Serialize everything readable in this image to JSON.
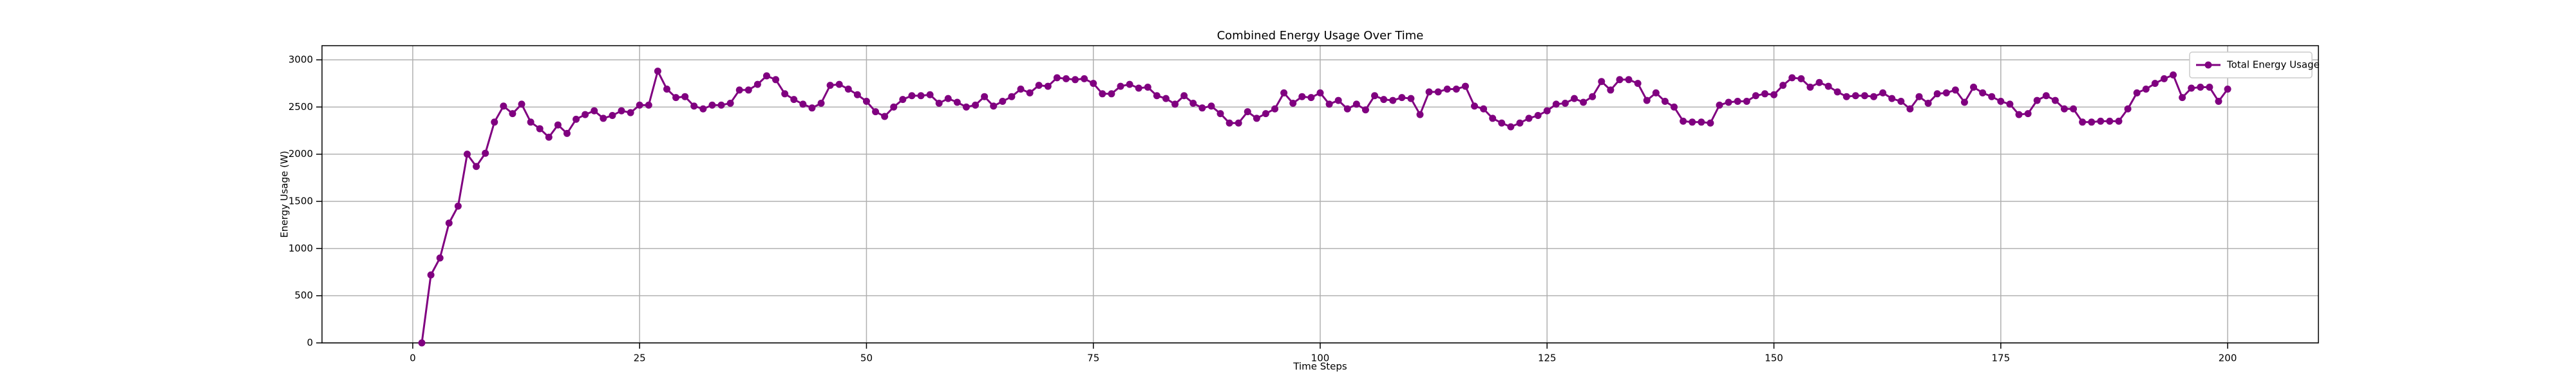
{
  "chart_data": {
    "type": "line",
    "title": "Combined Energy Usage Over Time",
    "x_label": "Time Steps",
    "y_label": "Energy Usage (W)",
    "x": [
      1,
      2,
      3,
      4,
      5,
      6,
      7,
      8,
      9,
      10,
      11,
      12,
      13,
      14,
      15,
      16,
      17,
      18,
      19,
      20,
      21,
      22,
      23,
      24,
      25,
      26,
      27,
      28,
      29,
      30,
      31,
      32,
      33,
      34,
      35,
      36,
      37,
      38,
      39,
      40,
      41,
      42,
      43,
      44,
      45,
      46,
      47,
      48,
      49,
      50,
      51,
      52,
      53,
      54,
      55,
      56,
      57,
      58,
      59,
      60,
      61,
      62,
      63,
      64,
      65,
      66,
      67,
      68,
      69,
      70,
      71,
      72,
      73,
      74,
      75,
      76,
      77,
      78,
      79,
      80,
      81,
      82,
      83,
      84,
      85,
      86,
      87,
      88,
      89,
      90,
      91,
      92,
      93,
      94,
      95,
      96,
      97,
      98,
      99,
      100,
      101,
      102,
      103,
      104,
      105,
      106,
      107,
      108,
      109,
      110,
      111,
      112,
      113,
      114,
      115,
      116,
      117,
      118,
      119,
      120,
      121,
      122,
      123,
      124,
      125,
      126,
      127,
      128,
      129,
      130,
      131,
      132,
      133,
      134,
      135,
      136,
      137,
      138,
      139,
      140,
      141,
      142,
      143,
      144,
      145,
      146,
      147,
      148,
      149,
      150,
      151,
      152,
      153,
      154,
      155,
      156,
      157,
      158,
      159,
      160,
      161,
      162,
      163,
      164,
      165,
      166,
      167,
      168,
      169,
      170,
      171,
      172,
      173,
      174,
      175,
      176,
      177,
      178,
      179,
      180,
      181,
      182,
      183,
      184,
      185,
      186,
      187,
      188,
      189,
      190,
      191,
      192,
      193,
      194,
      195,
      196,
      197,
      198,
      199,
      200
    ],
    "series": [
      {
        "name": "Total Energy Usage",
        "color": "#800080",
        "values": [
          0,
          720,
          900,
          1270,
          1450,
          2000,
          1870,
          2010,
          2340,
          2510,
          2430,
          2530,
          2340,
          2270,
          2180,
          2310,
          2220,
          2370,
          2420,
          2460,
          2380,
          2410,
          2460,
          2440,
          2520,
          2520,
          2880,
          2690,
          2600,
          2610,
          2510,
          2480,
          2520,
          2520,
          2540,
          2680,
          2680,
          2740,
          2830,
          2790,
          2640,
          2580,
          2530,
          2490,
          2540,
          2730,
          2740,
          2690,
          2630,
          2560,
          2450,
          2400,
          2500,
          2580,
          2620,
          2620,
          2630,
          2540,
          2590,
          2550,
          2500,
          2520,
          2610,
          2510,
          2560,
          2610,
          2690,
          2650,
          2730,
          2720,
          2810,
          2800,
          2790,
          2800,
          2750,
          2640,
          2640,
          2720,
          2740,
          2700,
          2710,
          2620,
          2590,
          2530,
          2620,
          2540,
          2490,
          2510,
          2430,
          2330,
          2330,
          2450,
          2380,
          2430,
          2480,
          2650,
          2540,
          2610,
          2600,
          2650,
          2530,
          2570,
          2480,
          2530,
          2470,
          2620,
          2580,
          2570,
          2600,
          2590,
          2420,
          2660,
          2660,
          2690,
          2690,
          2720,
          2510,
          2480,
          2380,
          2330,
          2290,
          2330,
          2380,
          2410,
          2460,
          2530,
          2540,
          2590,
          2550,
          2610,
          2770,
          2680,
          2790,
          2790,
          2750,
          2570,
          2650,
          2560,
          2500,
          2350,
          2340,
          2340,
          2330,
          2520,
          2550,
          2560,
          2560,
          2620,
          2640,
          2630,
          2730,
          2810,
          2800,
          2710,
          2760,
          2720,
          2660,
          2610,
          2620,
          2620,
          2610,
          2650,
          2590,
          2560,
          2480,
          2610,
          2540,
          2640,
          2650,
          2680,
          2550,
          2710,
          2650,
          2610,
          2560,
          2530,
          2420,
          2430,
          2570,
          2620,
          2570,
          2480,
          2480,
          2340,
          2340,
          2350,
          2350,
          2350,
          2480,
          2650,
          2690,
          2750,
          2800,
          2840,
          2600,
          2700,
          2710,
          2710,
          2560,
          2690
        ]
      }
    ],
    "xlim": [
      -10,
      210
    ],
    "xticks": [
      0,
      25,
      50,
      75,
      100,
      125,
      150,
      175,
      200
    ],
    "ylim": [
      0,
      3150
    ],
    "yticks": [
      0,
      500,
      1000,
      1500,
      2000,
      2500,
      3000
    ],
    "grid": true,
    "legend": "upper right"
  }
}
